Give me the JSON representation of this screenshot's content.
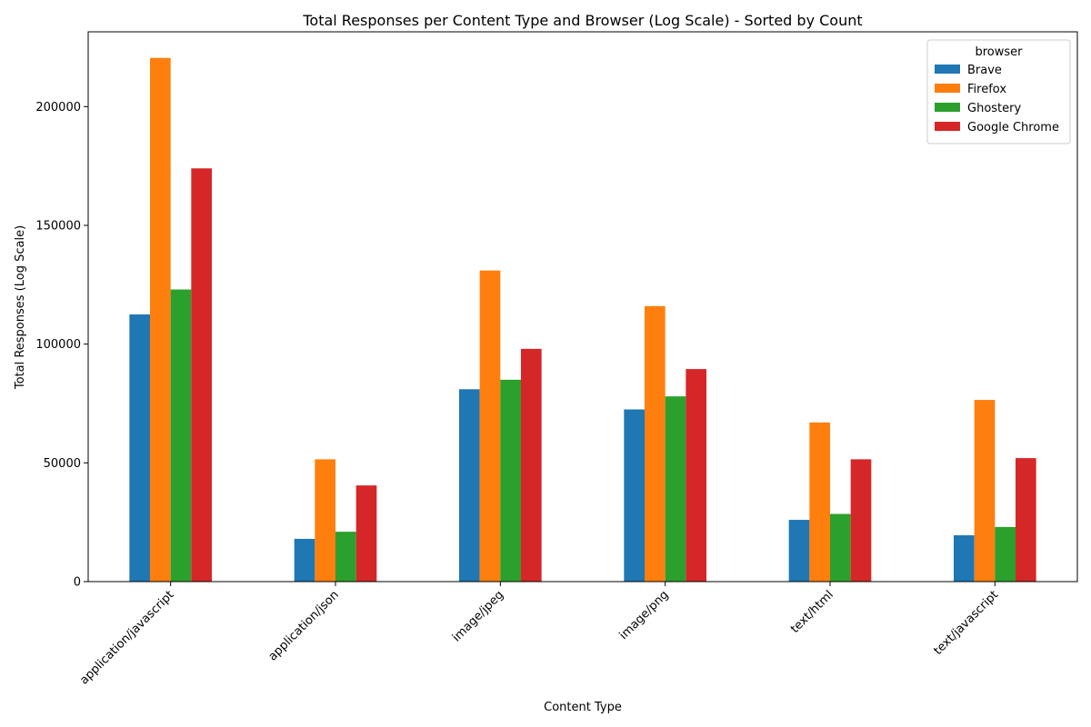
{
  "chart_data": {
    "type": "bar",
    "title": "Total Responses per Content Type and Browser (Log Scale) - Sorted by Count",
    "xlabel": "Content Type",
    "ylabel": "Total Responses (Log Scale)",
    "categories": [
      "application/javascript",
      "application/json",
      "image/jpeg",
      "image/png",
      "text/html",
      "text/javascript"
    ],
    "yticks": [
      0,
      50000,
      100000,
      150000,
      200000
    ],
    "ylim": [
      0,
      231500
    ],
    "legend_title": "browser",
    "legend_position": "top-right",
    "grid": false,
    "series": [
      {
        "name": "Brave",
        "color": "#1f77b4",
        "values": [
          112500,
          18000,
          81000,
          72500,
          26000,
          19500
        ]
      },
      {
        "name": "Firefox",
        "color": "#ff7f0e",
        "values": [
          220500,
          51500,
          131000,
          116000,
          67000,
          76500
        ]
      },
      {
        "name": "Ghostery",
        "color": "#2ca02c",
        "values": [
          123000,
          21000,
          85000,
          78000,
          28500,
          23000
        ]
      },
      {
        "name": "Google Chrome",
        "color": "#d62728",
        "values": [
          174000,
          40500,
          98000,
          89500,
          51500,
          52000
        ]
      }
    ]
  }
}
